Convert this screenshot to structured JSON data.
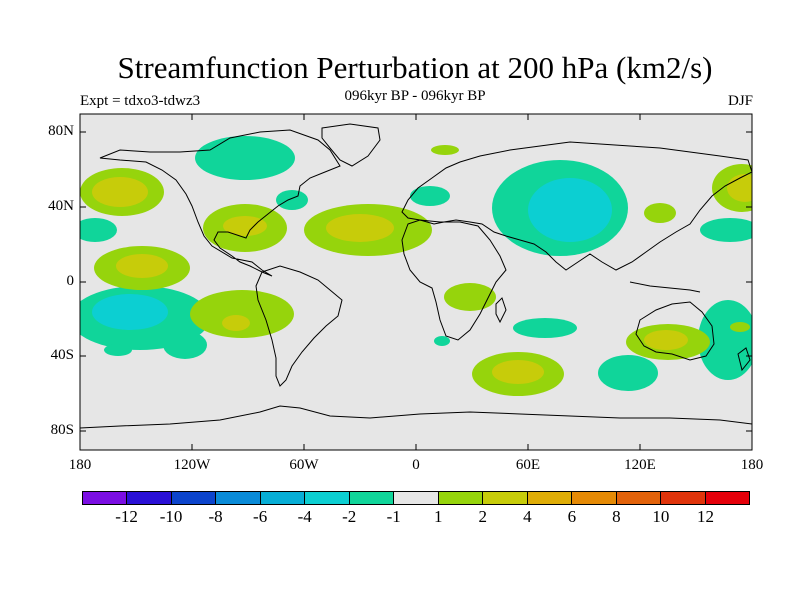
{
  "header": {
    "title": "Streamfunction Perturbation at 200 hPa (km2/s)",
    "subtitle": "096kyr BP - 096kyr BP",
    "left_string": "Expt = tdxo3-tdwz3",
    "right_string": "DJF"
  },
  "axes": {
    "lat_labels": [
      "80N",
      "40N",
      "0",
      "40S",
      "80S"
    ],
    "lon_labels": [
      "180",
      "120W",
      "60W",
      "0",
      "60E",
      "120E",
      "180"
    ]
  },
  "colorbar": {
    "colors": [
      "#7b0ee3",
      "#2a10d6",
      "#0c44cc",
      "#0a8bd8",
      "#07aed6",
      "#0ccfd2",
      "#10d59a",
      "#e6e6e6",
      "#96d40c",
      "#c7cc0a",
      "#dfad07",
      "#e58a05",
      "#e2620a",
      "#e0340b",
      "#e5000a"
    ],
    "labels": [
      "-12",
      "-10",
      "-8",
      "-6",
      "-4",
      "-2",
      "-1",
      "1",
      "2",
      "4",
      "6",
      "8",
      "10",
      "12"
    ]
  },
  "colors": {
    "background": "#e6e6e6",
    "neg1": "#10d59a",
    "neg2": "#0ccfd2",
    "pos1": "#96d40c",
    "pos2": "#c7cc0a"
  }
}
